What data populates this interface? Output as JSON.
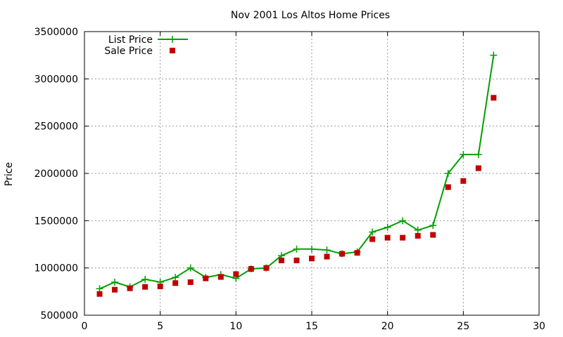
{
  "chart_data": {
    "type": "line",
    "title": "Nov 2001 Los Altos Home Prices",
    "xlabel": "",
    "ylabel": "Price",
    "xlim": [
      0,
      30
    ],
    "ylim": [
      500000,
      3500000
    ],
    "x_ticks": [
      0,
      5,
      10,
      15,
      20,
      25,
      30
    ],
    "y_ticks": [
      500000,
      1000000,
      1500000,
      2000000,
      2500000,
      3000000,
      3500000
    ],
    "grid": true,
    "legend_position": "top-left",
    "series": [
      {
        "name": "List Price",
        "style": "linespoints",
        "marker": "plus",
        "color": "#00a000",
        "x": [
          1,
          2,
          3,
          4,
          5,
          6,
          7,
          8,
          9,
          10,
          11,
          12,
          13,
          14,
          15,
          16,
          17,
          18,
          19,
          20,
          21,
          22,
          23,
          24,
          25,
          26,
          27
        ],
        "y": [
          780000,
          850000,
          800000,
          880000,
          850000,
          900000,
          1000000,
          900000,
          930000,
          890000,
          990000,
          1000000,
          1130000,
          1200000,
          1200000,
          1190000,
          1150000,
          1170000,
          1380000,
          1430000,
          1500000,
          1400000,
          1450000,
          2000000,
          2200000,
          2200000,
          3250000
        ]
      },
      {
        "name": "Sale Price",
        "style": "points",
        "marker": "square",
        "color": "#c00000",
        "x": [
          1,
          2,
          3,
          4,
          5,
          6,
          7,
          8,
          9,
          10,
          11,
          12,
          13,
          14,
          15,
          16,
          17,
          18,
          19,
          20,
          21,
          22,
          23,
          24,
          25,
          26,
          27
        ],
        "y": [
          725000,
          770000,
          785000,
          800000,
          805000,
          840000,
          850000,
          890000,
          905000,
          935000,
          990000,
          1000000,
          1080000,
          1080000,
          1100000,
          1120000,
          1150000,
          1160000,
          1305000,
          1320000,
          1320000,
          1340000,
          1350000,
          1855000,
          1920000,
          2055000,
          2800000
        ]
      }
    ]
  }
}
